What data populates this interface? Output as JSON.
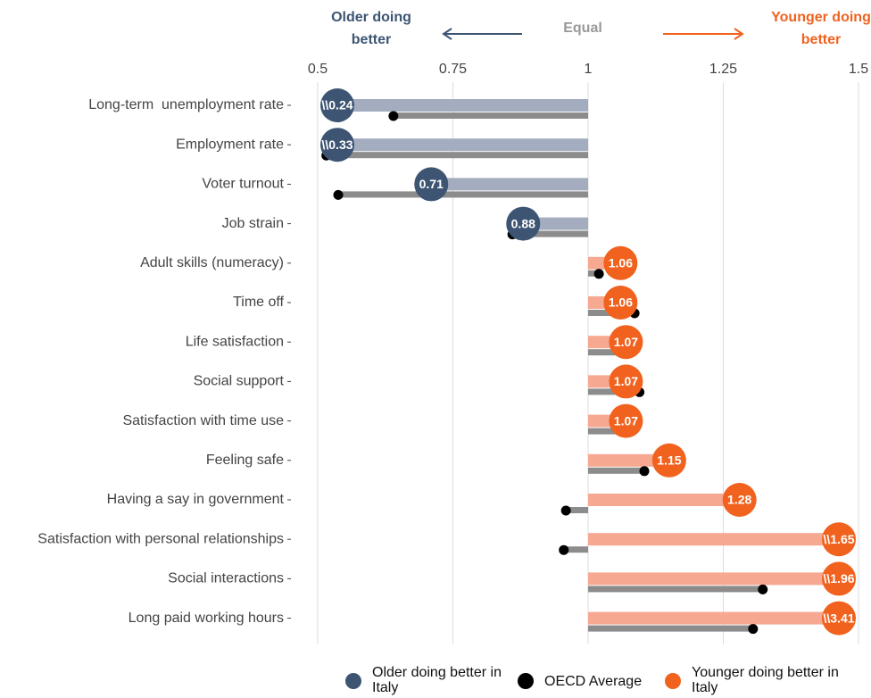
{
  "chart_data": {
    "type": "relative-bubble",
    "header": {
      "left": "Older doing better",
      "center": "Equal",
      "right": "Younger doing better"
    },
    "categories": [
      "Long-term  unemployment rate",
      "Employment rate",
      "Voter turnout",
      "Job strain",
      "Adult skills (numeracy)",
      "Time off",
      "Life satisfaction",
      "Social support",
      "Satisfaction with time use",
      "Feeling safe",
      "Having a say in government",
      "Satisfaction with personal relationships",
      "Social interactions",
      "Long paid working hours"
    ],
    "xlim": [
      0.5,
      1.5
    ],
    "xticks": [
      0.5,
      0.75,
      1,
      1.25,
      1.5
    ],
    "grid": true,
    "series": [
      {
        "name": "Older doing better in Italy",
        "color": "#3d5573",
        "bar_color": "#a3adbf",
        "values": [
          0.24,
          0.33,
          0.71,
          0.88,
          null,
          null,
          null,
          null,
          null,
          null,
          null,
          null,
          null,
          null
        ],
        "value_labels": [
          "\\\\0.24",
          "\\\\0.33",
          "0.71",
          "0.88",
          null,
          null,
          null,
          null,
          null,
          null,
          null,
          null,
          null,
          null
        ]
      },
      {
        "name": "OECD Average",
        "color": "#000000",
        "bar_color": "#8c8c8c",
        "values": [
          0.64,
          0.516,
          0.538,
          0.86,
          1.02,
          1.086,
          1.064,
          1.095,
          1.07,
          1.104,
          0.959,
          0.955,
          1.323,
          1.305
        ]
      },
      {
        "name": "Younger doing better in Italy",
        "color": "#f0621e",
        "bar_color": "#f6a891",
        "values": [
          null,
          null,
          null,
          null,
          1.06,
          1.06,
          1.07,
          1.07,
          1.07,
          1.15,
          1.28,
          1.65,
          1.96,
          3.41
        ],
        "value_labels": [
          null,
          null,
          null,
          null,
          "1.06",
          "1.06",
          "1.07",
          "1.07",
          "1.07",
          "1.15",
          "1.28",
          "\\\\1.65",
          "\\\\1.96",
          "\\\\3.41"
        ]
      }
    ]
  }
}
